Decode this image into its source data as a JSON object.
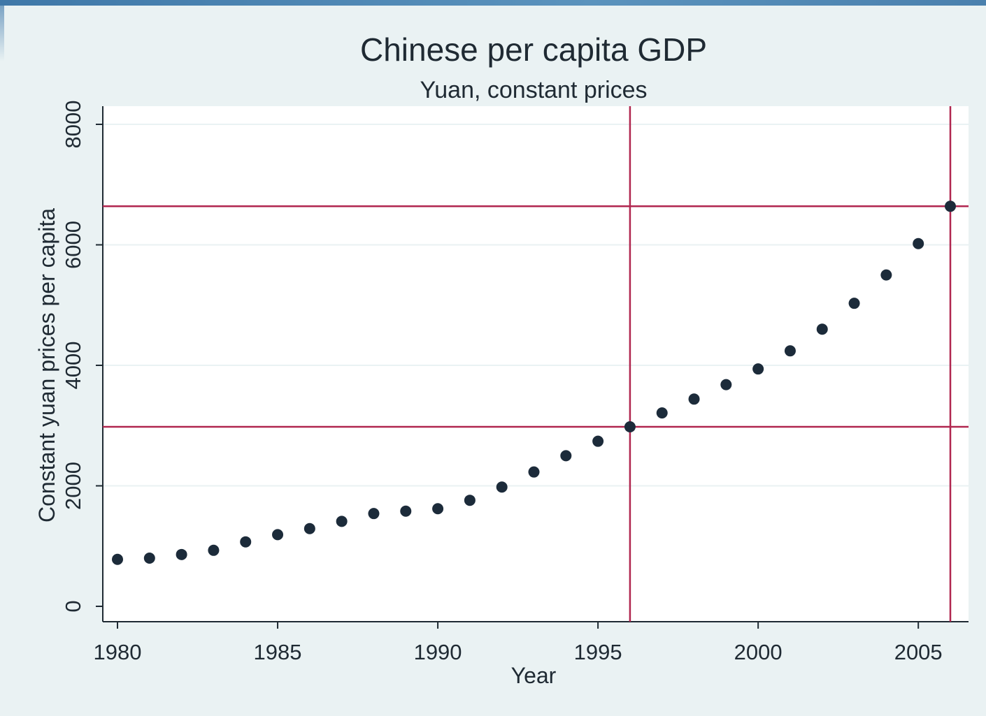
{
  "chart_data": {
    "type": "scatter",
    "title": "Chinese per capita GDP",
    "subtitle": "Yuan, constant prices",
    "xlabel": "Year",
    "ylabel": "Constant yuan prices per capita",
    "xlim": [
      1980,
      2006.5
    ],
    "ylim": [
      0,
      8000
    ],
    "xticks": [
      1980,
      1985,
      1990,
      1995,
      2000,
      2005
    ],
    "yticks": [
      0,
      2000,
      4000,
      6000,
      8000
    ],
    "grid": true,
    "legend": "none",
    "series": [
      {
        "x": [
          1980,
          1981,
          1982,
          1983,
          1984,
          1985,
          1986,
          1987,
          1988,
          1989,
          1990,
          1991,
          1992,
          1993,
          1994,
          1995,
          1996,
          1997,
          1998,
          1999,
          2000,
          2001,
          2002,
          2003,
          2004,
          2005,
          2006
        ],
        "y": [
          780,
          800,
          860,
          930,
          1070,
          1190,
          1290,
          1410,
          1540,
          1580,
          1620,
          1760,
          1980,
          2230,
          2500,
          2740,
          2980,
          3210,
          3440,
          3680,
          3940,
          4240,
          4600,
          5030,
          5500,
          6020,
          6640
        ]
      }
    ],
    "reference_lines": {
      "vertical": [
        1996,
        2006
      ],
      "horizontal": [
        2980,
        6640
      ]
    },
    "colors": {
      "marker": "#1c2b3a",
      "reference_line": "#b0264f",
      "plot_background": "#ffffff",
      "page_background": "#eaf2f3",
      "grid": "#eaf2f3"
    }
  }
}
